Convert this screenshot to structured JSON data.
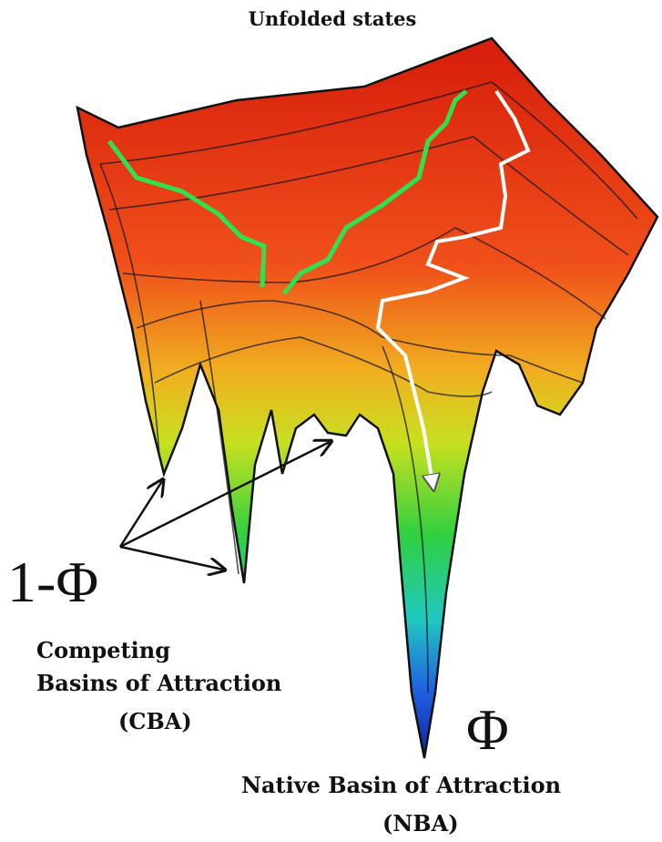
{
  "title": "Unfolded states",
  "competing": {
    "symbol": "1-Φ",
    "lines": [
      "Competing",
      "Basins of Attraction",
      "(CBA)"
    ]
  },
  "native": {
    "symbol": "Φ",
    "lines": [
      "Native Basin of Attraction",
      "(NBA)"
    ]
  }
}
